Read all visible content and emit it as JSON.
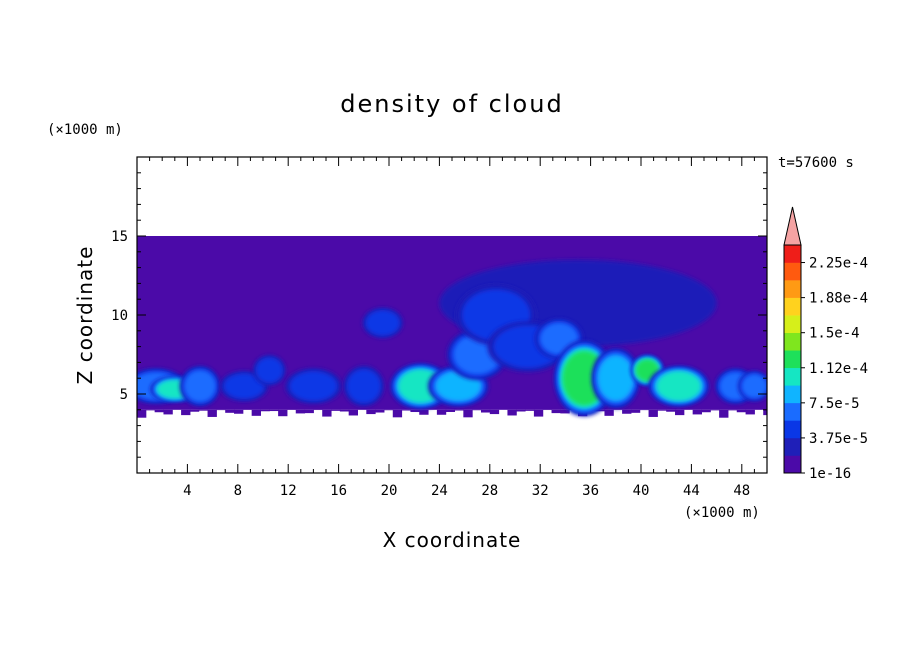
{
  "chart_data": {
    "type": "heatmap",
    "title": "density of cloud",
    "xlabel": "X coordinate",
    "ylabel": "Z coordinate",
    "x_unit": "(×1000 m)",
    "y_unit": "(×1000 m)",
    "time_label": "t=57600 s",
    "xlim": [
      0,
      50
    ],
    "ylim": [
      0,
      20
    ],
    "x_ticks": [
      4,
      8,
      12,
      16,
      20,
      24,
      28,
      32,
      36,
      40,
      44,
      48
    ],
    "y_ticks": [
      5,
      10,
      15
    ],
    "x_tick_labels": [
      "4",
      "8",
      "12",
      "16",
      "20",
      "24",
      "28",
      "32",
      "36",
      "40",
      "44",
      "48"
    ],
    "y_tick_labels": [
      "5",
      "10",
      "15"
    ],
    "colorbar": {
      "levels": [
        1e-16,
        3.75e-05,
        7.5e-05,
        0.000112,
        0.00015,
        0.000188,
        0.000225
      ],
      "labels": [
        "1e-16",
        "3.75e-5",
        "7.5e-5",
        "1.12e-4",
        "1.5e-4",
        "1.88e-4",
        "2.25e-4"
      ],
      "colors": [
        "#4b0aa8",
        "#1f1fb8",
        "#0a37e6",
        "#1a6cff",
        "#10b4ff",
        "#15e6c3",
        "#1ee05a",
        "#7fe61e",
        "#d6ef1a",
        "#ffd21e",
        "#ff9a14",
        "#ff5a0f",
        "#ef1e19",
        "#f5a3a3"
      ],
      "extend": "max"
    },
    "background_region": {
      "x": [
        0,
        50
      ],
      "z": [
        4,
        15
      ],
      "value": 1e-16
    },
    "upper_anvil": {
      "x": [
        24,
        46
      ],
      "z": [
        8,
        13.5
      ],
      "level": 1
    },
    "blobs": [
      {
        "x": 1.5,
        "z": 5.5,
        "rx": 1.5,
        "rz": 0.7,
        "level": 3
      },
      {
        "x": 3.0,
        "z": 5.3,
        "rx": 1.2,
        "rz": 0.5,
        "level": 5
      },
      {
        "x": 5.0,
        "z": 5.5,
        "rx": 1.0,
        "rz": 0.8,
        "level": 3
      },
      {
        "x": 8.5,
        "z": 5.5,
        "rx": 1.2,
        "rz": 0.6,
        "level": 2
      },
      {
        "x": 10.5,
        "z": 6.5,
        "rx": 0.8,
        "rz": 0.6,
        "level": 2
      },
      {
        "x": 14.0,
        "z": 5.5,
        "rx": 1.4,
        "rz": 0.7,
        "level": 2
      },
      {
        "x": 18.0,
        "z": 5.5,
        "rx": 1.0,
        "rz": 0.8,
        "level": 2
      },
      {
        "x": 19.5,
        "z": 9.5,
        "rx": 1.0,
        "rz": 0.6,
        "level": 2
      },
      {
        "x": 22.5,
        "z": 5.5,
        "rx": 1.5,
        "rz": 0.9,
        "level": 5
      },
      {
        "x": 25.5,
        "z": 5.5,
        "rx": 1.5,
        "rz": 0.8,
        "level": 4
      },
      {
        "x": 27.0,
        "z": 7.5,
        "rx": 1.5,
        "rz": 1.0,
        "level": 3
      },
      {
        "x": 28.5,
        "z": 10.0,
        "rx": 2.0,
        "rz": 1.2,
        "level": 2
      },
      {
        "x": 31.0,
        "z": 8.0,
        "rx": 2.0,
        "rz": 1.0,
        "level": 2
      },
      {
        "x": 33.5,
        "z": 8.5,
        "rx": 1.2,
        "rz": 0.8,
        "level": 3
      },
      {
        "x": 35.5,
        "z": 6.0,
        "rx": 1.5,
        "rz": 1.5,
        "level": 6
      },
      {
        "x": 38.0,
        "z": 6.0,
        "rx": 1.2,
        "rz": 1.2,
        "level": 4
      },
      {
        "x": 40.5,
        "z": 6.5,
        "rx": 0.8,
        "rz": 0.6,
        "level": 6
      },
      {
        "x": 43.0,
        "z": 5.5,
        "rx": 1.5,
        "rz": 0.8,
        "level": 5
      },
      {
        "x": 47.5,
        "z": 5.5,
        "rx": 1.0,
        "rz": 0.7,
        "level": 3
      },
      {
        "x": 49.0,
        "z": 5.5,
        "rx": 0.8,
        "rz": 0.6,
        "level": 3
      }
    ]
  }
}
